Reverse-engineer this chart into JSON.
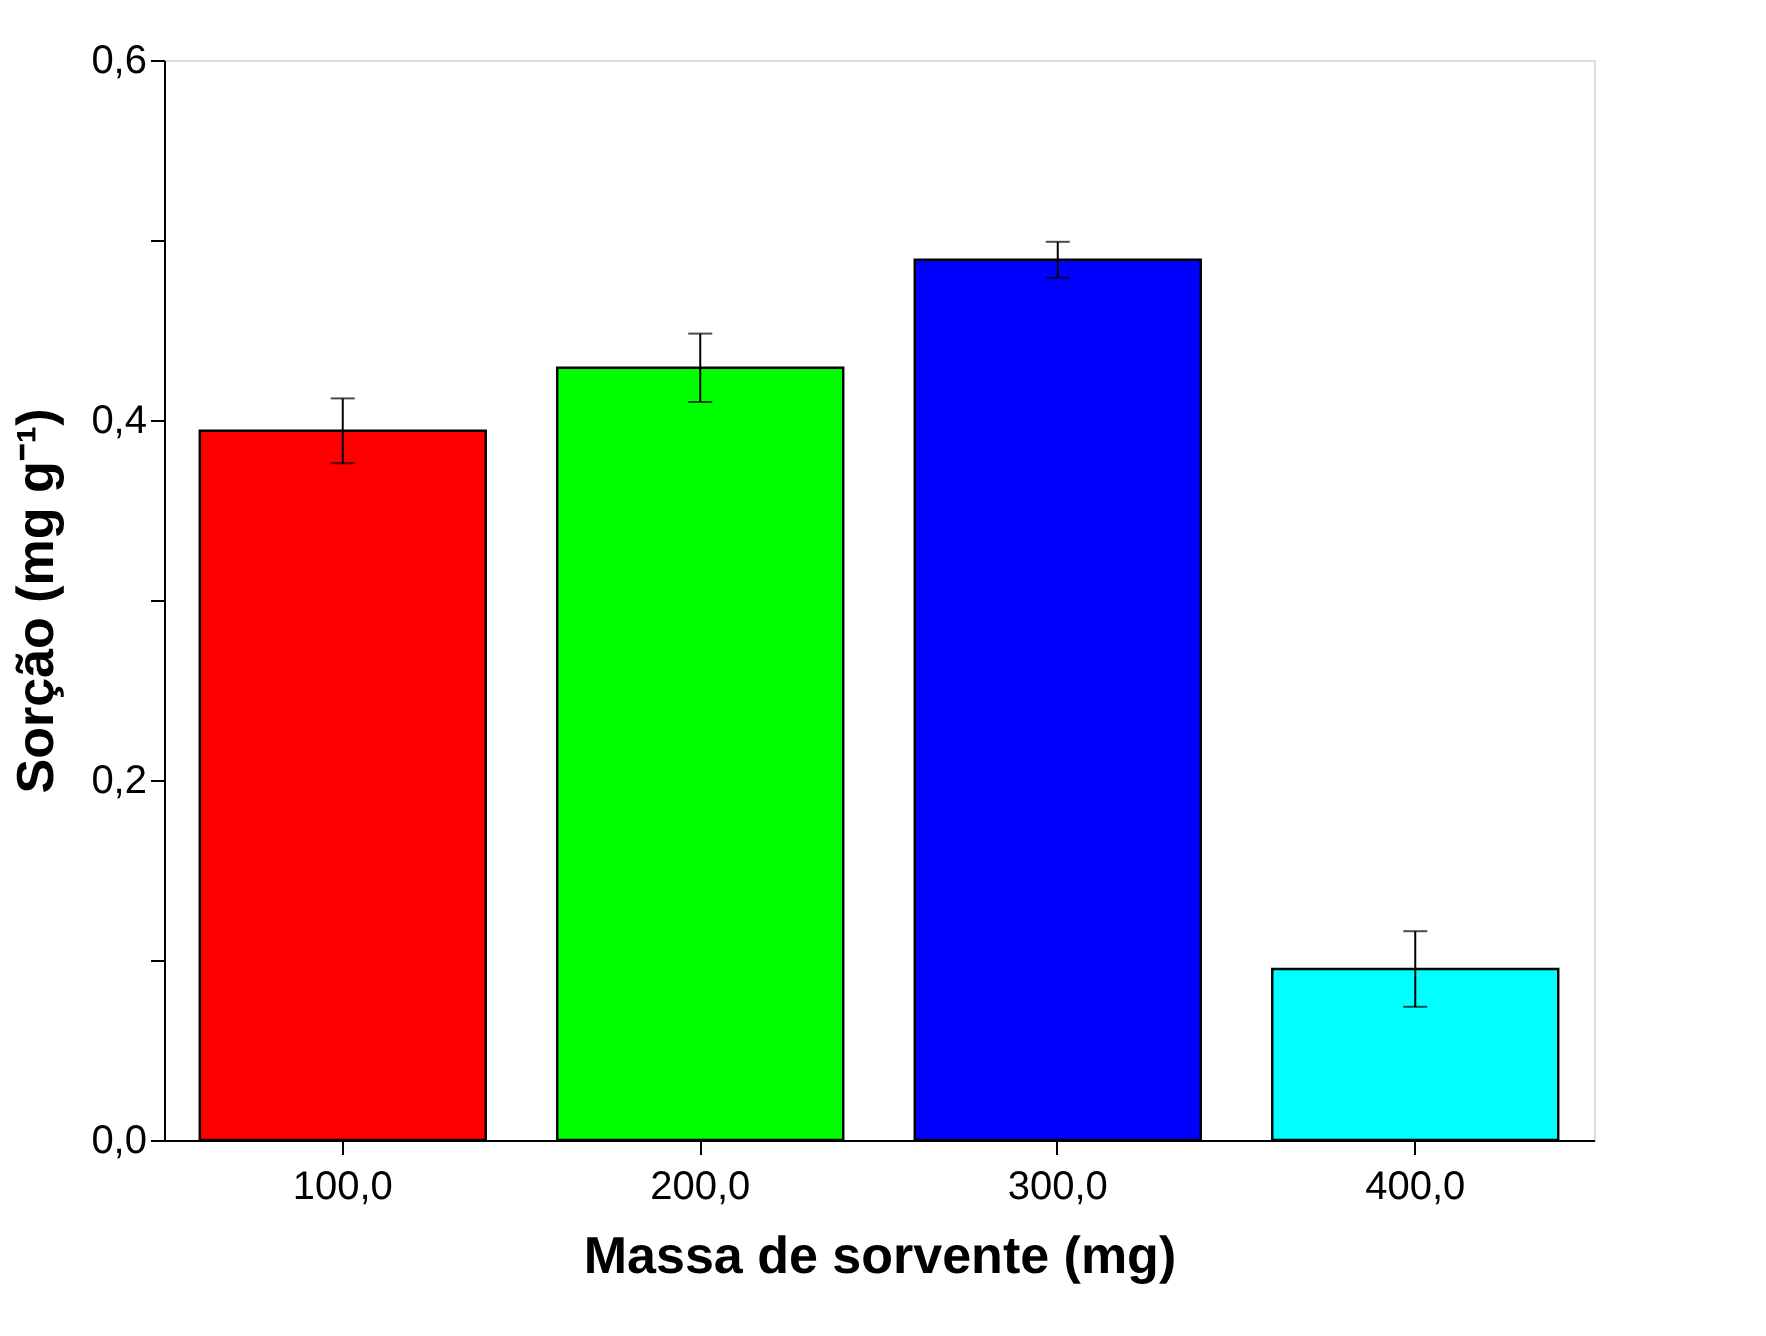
{
  "chart_data": {
    "type": "bar",
    "xlabel": "Massa de sorvente (mg)",
    "ylabel": "Sorção (mg g⁻¹)",
    "categories": [
      "100,0",
      "200,0",
      "300,0",
      "400,0"
    ],
    "values": [
      0.394,
      0.429,
      0.489,
      0.095
    ],
    "errors": [
      0.018,
      0.019,
      0.01,
      0.021
    ],
    "colors": [
      "#ff0000",
      "#00ff00",
      "#0000ff",
      "#00ffff"
    ],
    "ylim": [
      0,
      0.6
    ],
    "yticks": [
      {
        "value": 0,
        "label": "0,0"
      },
      {
        "value": 0.1,
        "label": null
      },
      {
        "value": 0.2,
        "label": "0,2"
      },
      {
        "value": 0.3,
        "label": null
      },
      {
        "value": 0.4,
        "label": "0,4"
      },
      {
        "value": 0.5,
        "label": null
      },
      {
        "value": 0.6,
        "label": "0,6"
      }
    ],
    "grid": false,
    "legend": false
  }
}
